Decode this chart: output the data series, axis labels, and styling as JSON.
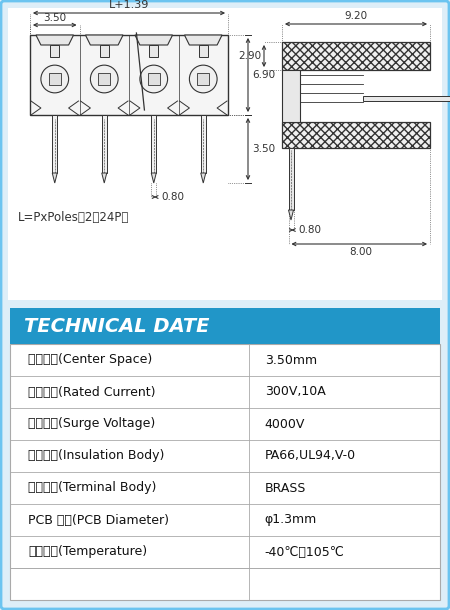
{
  "title": "TECHNICAL DATE",
  "title_bg": "#2196c8",
  "title_color": "#ffffff",
  "outer_border_color": "#6bc4f0",
  "table_rows": [
    [
      "端子間距(Center Space)",
      "3.50mm"
    ],
    [
      "額定電流(Rated Current)",
      "300V,10A"
    ],
    [
      "衝擊耐壓(Surge Voltage)",
      "4000V"
    ],
    [
      "絕縁材料(Insulation Body)",
      "PA66,UL94,V-0"
    ],
    [
      "端子材質(Terminal Body)",
      "BRASS"
    ],
    [
      "PCB 孔徑(PCB Diameter)",
      "φ1.3mm"
    ],
    [
      "操作溫度(Temperature)",
      "-40℃～105℃"
    ]
  ],
  "formula_text": "L=PxPoles（2～24P）",
  "outer_bg": "#ddeef8",
  "line_color": "#333333",
  "dim_color": "#333333"
}
